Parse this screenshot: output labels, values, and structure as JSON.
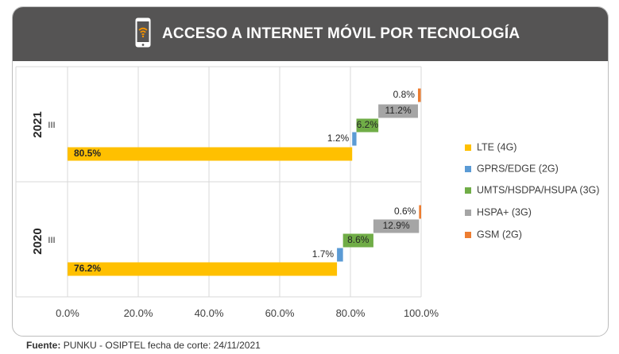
{
  "header": {
    "title": "ACCESO A INTERNET MÓVIL POR TECNOLOGÍA",
    "icon": "smartphone-wifi-icon",
    "background": "#555454"
  },
  "footer": {
    "label": "Fuente:",
    "text": "PUNKU - OSIPTEL fecha de corte: 24/11/2021"
  },
  "chart_data": {
    "type": "bar",
    "orientation": "horizontal",
    "stacking": "waterfall",
    "groups": [
      {
        "year": "2021",
        "quarter": "III"
      },
      {
        "year": "2020",
        "quarter": "III"
      }
    ],
    "series": [
      {
        "name": "LTE (4G)",
        "color": "#FFC000",
        "values": [
          80.5,
          76.2
        ],
        "labels": [
          "80.5%",
          "76.2%"
        ]
      },
      {
        "name": "GPRS/EDGE (2G)",
        "color": "#5B9BD5",
        "values": [
          1.2,
          1.7
        ],
        "labels": [
          "1.2%",
          "1.7%"
        ]
      },
      {
        "name": "UMTS/HSDPA/HSUPA (3G)",
        "color": "#70AD47",
        "values": [
          6.2,
          8.6
        ],
        "labels": [
          "6.2%",
          "8.6%"
        ]
      },
      {
        "name": "HSPA+ (3G)",
        "color": "#A5A5A5",
        "values": [
          11.2,
          12.9
        ],
        "labels": [
          "11.2%",
          "12.9%"
        ]
      },
      {
        "name": "GSM (2G)",
        "color": "#ED7D31",
        "values": [
          0.8,
          0.6
        ],
        "labels": [
          "0.8%",
          "0.6%"
        ]
      }
    ],
    "xlim": [
      0,
      100
    ],
    "xticks": [
      0,
      20,
      40,
      60,
      80,
      100
    ],
    "xtick_labels": [
      "0.0%",
      "20.0%",
      "40.0%",
      "60.0%",
      "80.0%",
      "100.0%"
    ],
    "grid": true,
    "legend": "right"
  }
}
